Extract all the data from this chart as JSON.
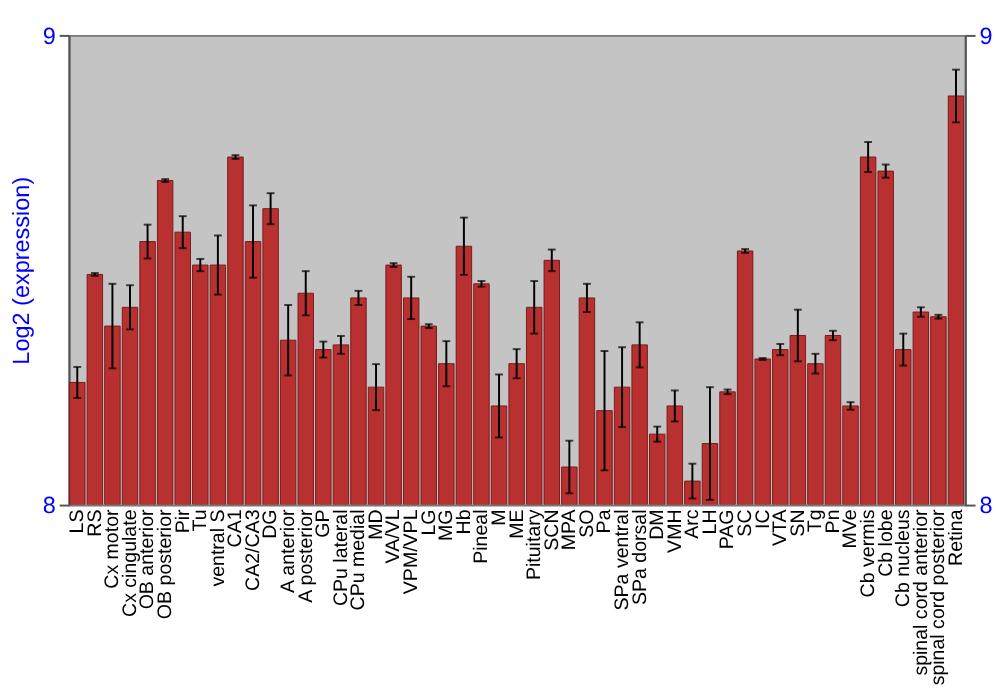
{
  "chart_data": {
    "type": "bar",
    "ylabel": "Log2 (expression)",
    "categories": [
      "LS",
      "RS",
      "Cx motor",
      "Cx cingulate",
      "OB anterior",
      "OB posterior",
      "Pir",
      "Tu",
      "ventral S",
      "CA1",
      "CA2/CA3",
      "DG",
      "A anterior",
      "A posterior",
      "GP",
      "CPu lateral",
      "CPu medial",
      "MD",
      "VA/VL",
      "VPM/VPL",
      "LG",
      "MG",
      "Hb",
      "Pineal",
      "M",
      "ME",
      "Pituitary",
      "SCN",
      "MPA",
      "SO",
      "Pa",
      "SPa ventral",
      "SPa dorsal",
      "DM",
      "VMH",
      "Arc",
      "LH",
      "PAG",
      "SC",
      "IC",
      "VTA",
      "SN",
      "Tg",
      "Pn",
      "MVe",
      "Cb vermis",
      "Cb lobe",
      "Cb nucleus",
      "spinal cord anterior",
      "spinal cord posterior",
      "Retina"
    ],
    "values": [
      8.26,
      8.49,
      8.38,
      8.42,
      8.56,
      8.69,
      8.58,
      8.51,
      8.51,
      8.74,
      8.56,
      8.63,
      8.35,
      8.45,
      8.33,
      8.34,
      8.44,
      8.25,
      8.51,
      8.44,
      8.38,
      8.3,
      8.55,
      8.47,
      8.21,
      8.3,
      8.42,
      8.52,
      8.08,
      8.44,
      8.2,
      8.25,
      8.34,
      8.15,
      8.21,
      8.05,
      8.13,
      8.24,
      8.54,
      8.31,
      8.33,
      8.36,
      8.3,
      8.36,
      8.21,
      8.74,
      8.71,
      8.33,
      8.41,
      8.4,
      8.87
    ],
    "errors": [
      0.033,
      0.003,
      0.09,
      0.047,
      0.036,
      0.003,
      0.034,
      0.013,
      0.063,
      0.004,
      0.077,
      0.033,
      0.075,
      0.047,
      0.017,
      0.019,
      0.015,
      0.049,
      0.004,
      0.045,
      0.004,
      0.048,
      0.061,
      0.006,
      0.067,
      0.031,
      0.056,
      0.023,
      0.056,
      0.03,
      0.127,
      0.085,
      0.048,
      0.016,
      0.033,
      0.037,
      0.12,
      0.005,
      0.004,
      0.002,
      0.012,
      0.055,
      0.021,
      0.01,
      0.008,
      0.032,
      0.014,
      0.034,
      0.01,
      0.004,
      0.056
    ],
    "color": "#b83030",
    "ylim": [
      8,
      9
    ],
    "yticks": [
      8,
      9
    ],
    "y2lim": [
      8,
      9
    ],
    "y2ticks": [
      8,
      9
    ]
  }
}
